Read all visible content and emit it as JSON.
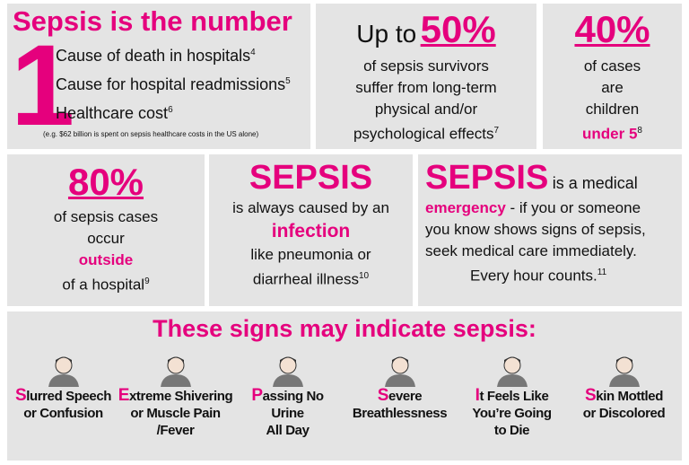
{
  "number_one": {
    "title": "Sepsis is the number",
    "numeral": "1",
    "items": [
      {
        "text": "Cause of death in hospitals",
        "ref": "4"
      },
      {
        "text": "Cause for hospital readmissions",
        "ref": "5"
      },
      {
        "text": "Healthcare cost",
        "ref": "6"
      }
    ],
    "note": "(e.g. $62 billion is spent on sepsis healthcare costs in the US alone)"
  },
  "survivors": {
    "lead": "Up to",
    "stat": "50%",
    "body": [
      "of sepsis survivors",
      "suffer from long-term",
      "physical and/or",
      "psychological effects"
    ],
    "ref": "7"
  },
  "children": {
    "stat": "40%",
    "body": [
      "of cases",
      "are",
      "children"
    ],
    "highlight": "under 5",
    "ref": "8"
  },
  "outside": {
    "stat": "80%",
    "body": [
      "of sepsis cases",
      "occur"
    ],
    "highlight": "outside",
    "tail": "of a hospital",
    "ref": "9"
  },
  "infection": {
    "title": "SEPSIS",
    "body": "is always caused by an",
    "highlight": "infection",
    "tail": [
      "like pneumonia or",
      "diarrheal illness"
    ],
    "ref": "10"
  },
  "emergency": {
    "title": "SEPSIS",
    "title_tail": "is a medical",
    "highlight": "emergency",
    "body": [
      "- if you or someone",
      "you know shows signs of sepsis,",
      "seek medical care immediately.",
      "Every hour counts."
    ],
    "ref": "11"
  },
  "signs": {
    "title": "These signs may indicate sepsis:",
    "items": [
      {
        "initial": "S",
        "lines": [
          "lurred Speech",
          "or Confusion"
        ]
      },
      {
        "initial": "E",
        "lines": [
          "xtreme Shivering",
          "or Muscle Pain",
          "/Fever"
        ]
      },
      {
        "initial": "P",
        "lines": [
          "assing No",
          "Urine",
          "All Day"
        ]
      },
      {
        "initial": "S",
        "lines": [
          "evere",
          "Breathlessness"
        ]
      },
      {
        "initial": "I",
        "lines": [
          "t Feels Like",
          "You’re Going",
          "to Die"
        ]
      },
      {
        "initial": "S",
        "lines": [
          "kin Mottled",
          "or Discolored"
        ]
      }
    ]
  }
}
